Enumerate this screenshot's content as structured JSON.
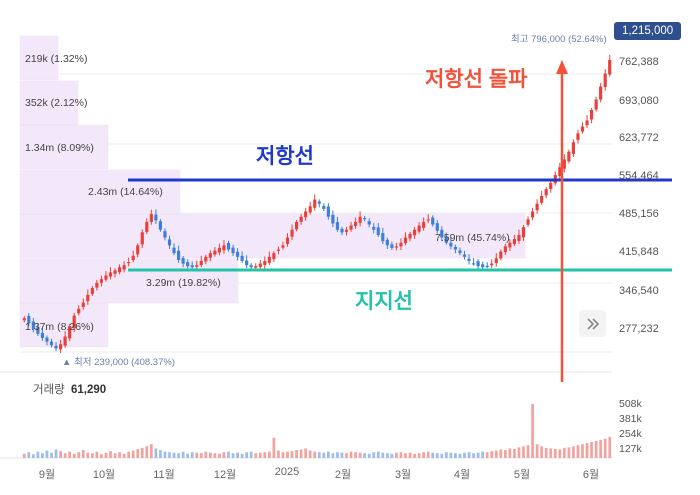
{
  "annotations": {
    "breakout": "저항선 돌파",
    "resistance": "저항선",
    "support": "지지선",
    "high": "최고 796,000 (52.64%)",
    "low": "▲ 최저 239,000 (408.37%)",
    "current_price": "1,215,000"
  },
  "volume_panel": {
    "label": "거래량",
    "value": "61,290"
  },
  "colors": {
    "up": "#e8403a",
    "down": "#3d7fd8",
    "resistance_line": "#1f3ac8",
    "support_line": "#22c3a6",
    "breakout_arrow": "#f0523a",
    "profile": "#ead6f5"
  },
  "icons": {
    "expand": "double-chevron-right-icon"
  },
  "chart_data": {
    "type": "candlestick",
    "y_ticks": [
      "762,388",
      "693,080",
      "623,772",
      "554,464",
      "485,156",
      "415,848",
      "346,540",
      "277,232"
    ],
    "x_ticks": [
      "9월",
      "10월",
      "11월",
      "12월",
      "2025",
      "2월",
      "3월",
      "4월",
      "5월",
      "6월"
    ],
    "volume_ticks": [
      "508k",
      "381k",
      "254k",
      "127k"
    ],
    "ylim": [
      239000,
      796000
    ],
    "volume_profile": [
      {
        "label": "219k (1.32%)"
      },
      {
        "label": "352k (2.12%)"
      },
      {
        "label": "1.34m (8.09%)"
      },
      {
        "label": "2.43m (14.64%)"
      },
      {
        "label": "7.59m (45.74%)"
      },
      {
        "label": "3.29m (19.82%)"
      },
      {
        "label": "1.37m (8.26%)"
      }
    ],
    "resistance_level": 554464,
    "support_level": 390000,
    "closes": [
      300000,
      290000,
      280000,
      270000,
      262000,
      255000,
      248000,
      242000,
      250000,
      265000,
      285000,
      305000,
      318000,
      330000,
      345000,
      358000,
      368000,
      375000,
      382000,
      388000,
      392000,
      398000,
      402000,
      408000,
      420000,
      440000,
      465000,
      485000,
      500000,
      488000,
      470000,
      455000,
      440000,
      425000,
      412000,
      405000,
      400000,
      398000,
      402000,
      410000,
      418000,
      425000,
      430000,
      435000,
      440000,
      432000,
      425000,
      418000,
      410000,
      402000,
      398000,
      400000,
      405000,
      410000,
      418000,
      425000,
      432000,
      440000,
      455000,
      470000,
      485000,
      495000,
      505000,
      515000,
      528000,
      520000,
      510000,
      495000,
      482000,
      470000,
      465000,
      470000,
      478000,
      485000,
      495000,
      490000,
      480000,
      470000,
      460000,
      448000,
      440000,
      435000,
      438000,
      445000,
      455000,
      462000,
      470000,
      478000,
      485000,
      490000,
      480000,
      468000,
      455000,
      445000,
      438000,
      432000,
      425000,
      418000,
      410000,
      405000,
      400000,
      398000,
      400000,
      405000,
      415000,
      428000,
      438000,
      445000,
      452000,
      460000,
      475000,
      490000,
      505000,
      520000,
      535000,
      548000,
      560000,
      575000,
      590000,
      605000,
      620000,
      638000,
      655000,
      668000,
      680000,
      700000,
      720000,
      745000,
      770000,
      796000
    ],
    "volumes": [
      40,
      55,
      35,
      60,
      45,
      70,
      50,
      80,
      65,
      45,
      60,
      40,
      55,
      75,
      50,
      45,
      60,
      35,
      50,
      65,
      45,
      55,
      40,
      60,
      70,
      85,
      95,
      110,
      130,
      90,
      75,
      60,
      55,
      50,
      45,
      60,
      40,
      55,
      50,
      45,
      60,
      50,
      45,
      40,
      55,
      60,
      45,
      50,
      40,
      55,
      60,
      45,
      50,
      55,
      60,
      190,
      70,
      55,
      60,
      65,
      75,
      80,
      90,
      70,
      60,
      55,
      50,
      60,
      45,
      55,
      50,
      45,
      60,
      55,
      50,
      45,
      40,
      55,
      60,
      50,
      45,
      40,
      50,
      55,
      45,
      50,
      40,
      45,
      55,
      60,
      50,
      45,
      40,
      55,
      50,
      45,
      40,
      50,
      55,
      45,
      50,
      60,
      55,
      65,
      70,
      80,
      75,
      90,
      85,
      100,
      110,
      120,
      508,
      130,
      110,
      95,
      90,
      85,
      80,
      95,
      100,
      110,
      120,
      130,
      140,
      150,
      160,
      170,
      180,
      200
    ]
  }
}
